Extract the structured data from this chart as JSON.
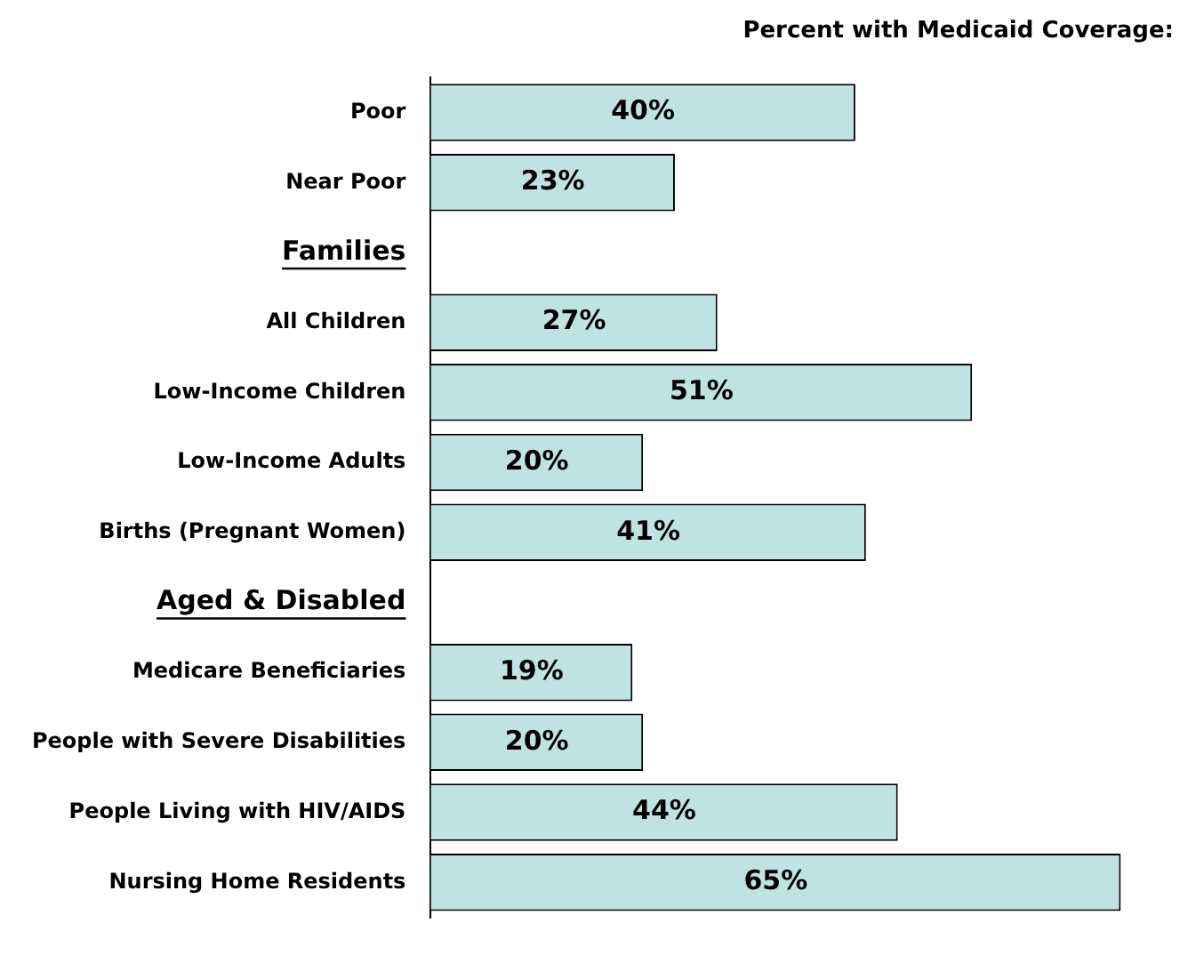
{
  "chart_data": {
    "type": "bar",
    "orientation": "horizontal",
    "title": "Percent with Medicaid Coverage:",
    "categories": [
      "Poor",
      "Near Poor",
      "Families",
      "All Children",
      "Low-Income Children",
      "Low-Income Adults",
      "Births (Pregnant Women)",
      "Aged & Disabled",
      "Medicare Beneficiaries",
      "People with Severe Disabilities",
      "People Living with HIV/AIDS",
      "Nursing Home Residents"
    ],
    "values": [
      40,
      23,
      null,
      27,
      51,
      20,
      41,
      null,
      19,
      20,
      44,
      65
    ],
    "value_labels": [
      "40%",
      "23%",
      null,
      "27%",
      "51%",
      "20%",
      "41%",
      null,
      "19%",
      "20%",
      "44%",
      "65%"
    ],
    "color": "#bfe3e3",
    "tick_labels": "y",
    "legend": false
  }
}
